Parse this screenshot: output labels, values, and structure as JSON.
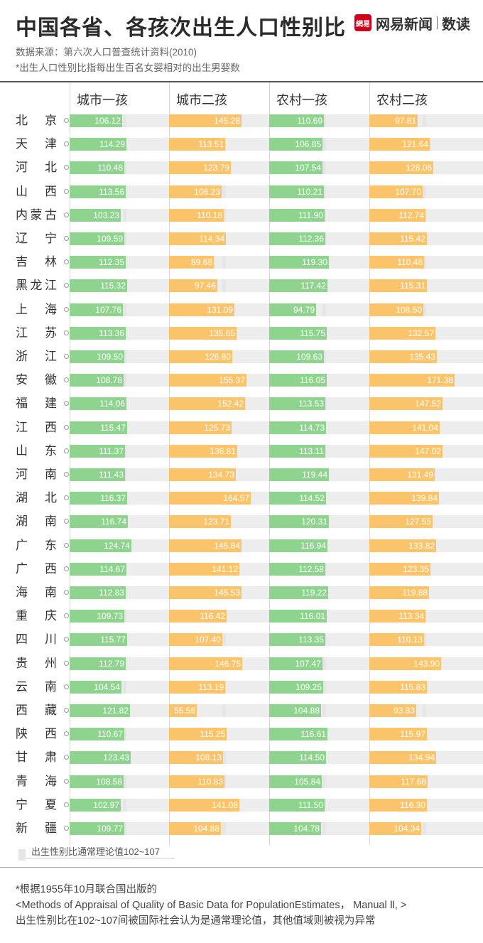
{
  "header": {
    "title": "中国各省、各孩次出生人口性别比",
    "logo_badge": "網易",
    "logo_text": "网易新闻",
    "logo_suffix": "数读",
    "source": "数据来源：第六次人口普查统计资料(2010)",
    "definition": "*出生人口性别比指每出生百名女婴相对的出生男婴数"
  },
  "legend": {
    "label": "出生性别比通常理论值102~107"
  },
  "notes": {
    "line1": "*根据1955年10月联合国出版的",
    "line2": "<Methods of Appraisal of Quality of Basic Data for PopulationEstimates， Manual Ⅱ, >",
    "line3": "出生性别比在102~107间被国际社会认为是通常理论值，其他值域则被视为异常"
  },
  "colors": {
    "urban": "#8ed48e",
    "rural_urban_second": "#fbc46a",
    "reference": "#e6e6e6"
  },
  "chart_data": {
    "type": "bar",
    "title": "中国各省、各孩次出生人口性别比",
    "reference_range": [
      102,
      107
    ],
    "columns": [
      "城市一孩",
      "城市二孩",
      "农村一孩",
      "农村二孩"
    ],
    "categories": [
      "北 京",
      "天 津",
      "河 北",
      "山 西",
      "内蒙古",
      "辽 宁",
      "吉 林",
      "黑龙江",
      "上 海",
      "江 苏",
      "浙 江",
      "安 徽",
      "福 建",
      "江 西",
      "山 东",
      "河 南",
      "湖 北",
      "湖 南",
      "广 东",
      "广 西",
      "海 南",
      "重 庆",
      "四 川",
      "贵 州",
      "云 南",
      "西 藏",
      "陕 西",
      "甘 肃",
      "青 海",
      "宁 夏",
      "新 疆"
    ],
    "series": [
      {
        "name": "城市一孩",
        "values": [
          "106.12",
          "114.29",
          "110.48",
          "113.56",
          "103.23",
          "109.59",
          "112.35",
          "115.32",
          "107.76",
          "113.36",
          "109.50",
          "108.78",
          "114.06",
          "115.47",
          "111.37",
          "111.43",
          "116.37",
          "116.74",
          "124.74",
          "114.67",
          "112.83",
          "109.73",
          "115.77",
          "112.79",
          "104.54",
          "121.82",
          "110.67",
          "123.43",
          "108.58",
          "102.97",
          "109.77"
        ]
      },
      {
        "name": "城市二孩",
        "values": [
          "145.28",
          "113.51",
          "123.79",
          "106.23",
          "110.18",
          "114.34",
          "89.68",
          "97.46",
          "131.09",
          "135.65",
          "126.80",
          "155.37",
          "152.42",
          "125.73",
          "136.81",
          "134.73",
          "164.57",
          "123.71",
          "145.84",
          "141.12",
          "145.53",
          "116.42",
          "107.40",
          "146.75",
          "113.19",
          "55.56",
          "115.25",
          "108.13",
          "110.83",
          "141.08",
          "104.88"
        ]
      },
      {
        "name": "农村一孩",
        "values": [
          "110.69",
          "106.85",
          "107.54",
          "110.21",
          "111.90",
          "112.36",
          "119.30",
          "117.42",
          "94.79",
          "115.75",
          "109.63",
          "116.05",
          "113.53",
          "114.73",
          "113.11",
          "119.44",
          "114.52",
          "120.31",
          "116.94",
          "112.58",
          "119.22",
          "116.01",
          "113.35",
          "107.47",
          "109.25",
          "104.88",
          "116.61",
          "114.50",
          "105.84",
          "111.50",
          "104.78"
        ]
      },
      {
        "name": "农村二孩",
        "values": [
          "97.81",
          "121.64",
          "128.06",
          "107.70",
          "112.74",
          "115.42",
          "110.48",
          "115.31",
          "108.50",
          "132.57",
          "135.43",
          "171.38",
          "147.52",
          "141.04",
          "147.02",
          "131.49",
          "139.84",
          "127.55",
          "133.82",
          "123.35",
          "119.88",
          "113.34",
          "110.13",
          "143.90",
          "115.83",
          "93.83",
          "115.97",
          "134.94",
          "117.68",
          "116.30",
          "104.34"
        ]
      }
    ]
  }
}
